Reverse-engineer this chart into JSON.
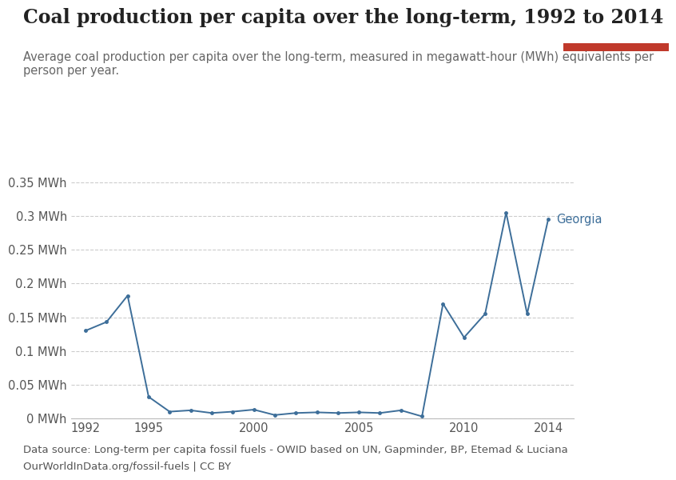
{
  "title": "Coal production per capita over the long-term, 1992 to 2014",
  "subtitle": "Average coal production per capita over the long-term, measured in megawatt-hour (MWh) equivalents per\nperson per year.",
  "datasource_line1": "Data source: Long-term per capita fossil fuels - OWID based on UN, Gapminder, BP, Etemad & Luciana",
  "datasource_line2": "OurWorldInData.org/fossil-fuels | CC BY",
  "line_color": "#3d6e99",
  "label": "Georgia",
  "years": [
    1992,
    1993,
    1994,
    1995,
    1996,
    1997,
    1998,
    1999,
    2000,
    2001,
    2002,
    2003,
    2004,
    2005,
    2006,
    2007,
    2008,
    2009,
    2010,
    2011,
    2012,
    2013,
    2014
  ],
  "values": [
    0.13,
    0.143,
    0.182,
    0.032,
    0.01,
    0.012,
    0.008,
    0.01,
    0.013,
    0.005,
    0.008,
    0.009,
    0.008,
    0.009,
    0.008,
    0.012,
    0.003,
    0.17,
    0.12,
    0.155,
    0.305,
    0.155,
    0.295
  ],
  "ylim": [
    0,
    0.37
  ],
  "yticks": [
    0,
    0.05,
    0.1,
    0.15,
    0.2,
    0.25,
    0.3,
    0.35
  ],
  "ytick_labels": [
    "0 MWh",
    "0.05 MWh",
    "0.1 MWh",
    "0.15 MWh",
    "0.2 MWh",
    "0.25 MWh",
    "0.3 MWh",
    "0.35 MWh"
  ],
  "xticks": [
    1992,
    1995,
    2000,
    2005,
    2010,
    2014
  ],
  "background_color": "#ffffff",
  "grid_color": "#cccccc",
  "title_fontsize": 17,
  "subtitle_fontsize": 10.5,
  "tick_fontsize": 10.5,
  "label_fontsize": 10.5,
  "source_fontsize": 9.5,
  "owid_box_color": "#1a3557",
  "owid_red": "#c0392b"
}
